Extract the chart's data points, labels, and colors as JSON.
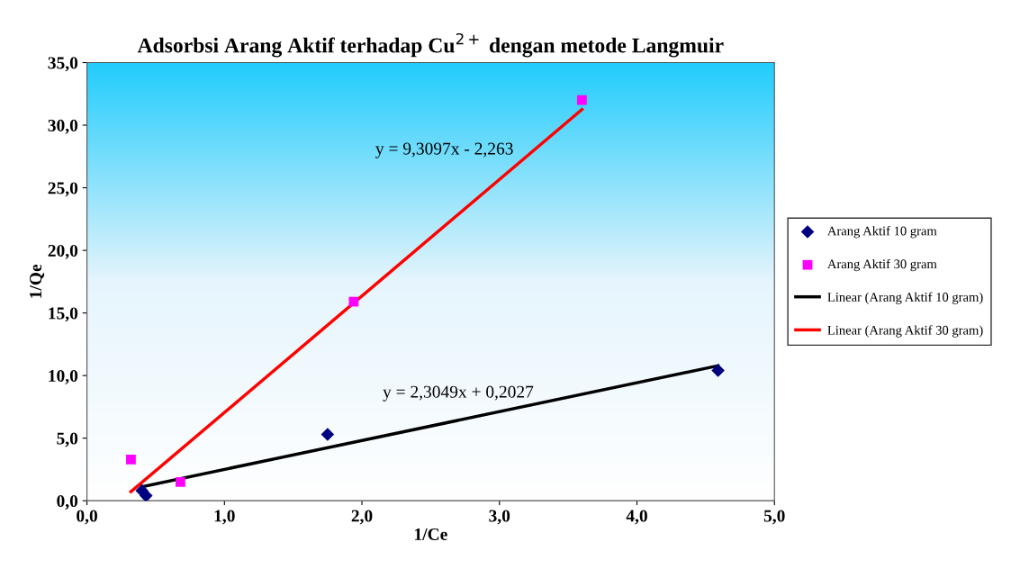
{
  "chart_data": {
    "type": "scatter",
    "title": "Adsorbsi Arang Aktif terhadap Cu$^{2+}$ dengan metode Langmuir",
    "xlabel": "1/Ce",
    "ylabel": "1/Qe",
    "series": [
      {
        "name": "Arang Aktif 10 gram",
        "marker": "diamond",
        "color": "#000080",
        "x": [
          0.4,
          0.43,
          1.75,
          4.59
        ],
        "values": [
          0.8,
          0.4,
          5.3,
          10.4
        ]
      },
      {
        "name": "Arang Aktif 30 gram",
        "marker": "square",
        "color": "#ff00ff",
        "x": [
          0.32,
          0.68,
          1.94,
          3.6
        ],
        "values": [
          3.3,
          1.5,
          15.9,
          32.0
        ]
      },
      {
        "name": "Linear (Arang Aktif 10 gram)",
        "type": "line",
        "marker": "none",
        "line_style": "solid",
        "color": "#000000",
        "x": [
          0.4,
          4.59
        ],
        "values": [
          1.12,
          10.78
        ]
      },
      {
        "name": "Linear (Arang Aktif 30 gram)",
        "type": "line",
        "marker": "none",
        "line_style": "solid",
        "color": "#ff0000",
        "x": [
          0.32,
          3.6
        ],
        "values": [
          0.72,
          31.25
        ]
      }
    ],
    "annotations": [
      "y = 9,3097x - 2,263",
      "y = 2,3049x + 0,2027"
    ],
    "xlim": [
      0,
      5
    ],
    "xticks": [
      {
        "value": 0,
        "label": "0,0"
      },
      {
        "value": 1,
        "label": "1,0"
      },
      {
        "value": 2,
        "label": "2,0"
      },
      {
        "value": 3,
        "label": "3,0"
      },
      {
        "value": 4,
        "label": "4,0"
      },
      {
        "value": 5,
        "label": "5,0"
      }
    ],
    "ylim": [
      0,
      35
    ],
    "yticks": [
      {
        "value": 0,
        "label": "0,0"
      },
      {
        "value": 5,
        "label": "5,0"
      },
      {
        "value": 10,
        "label": "10,0"
      },
      {
        "value": 15,
        "label": "15,0"
      },
      {
        "value": 20,
        "label": "20,0"
      },
      {
        "value": 25,
        "label": "25,0"
      },
      {
        "value": 30,
        "label": "30,0"
      },
      {
        "value": 35,
        "label": "35,0"
      }
    ],
    "grid": false,
    "legend": "right"
  }
}
